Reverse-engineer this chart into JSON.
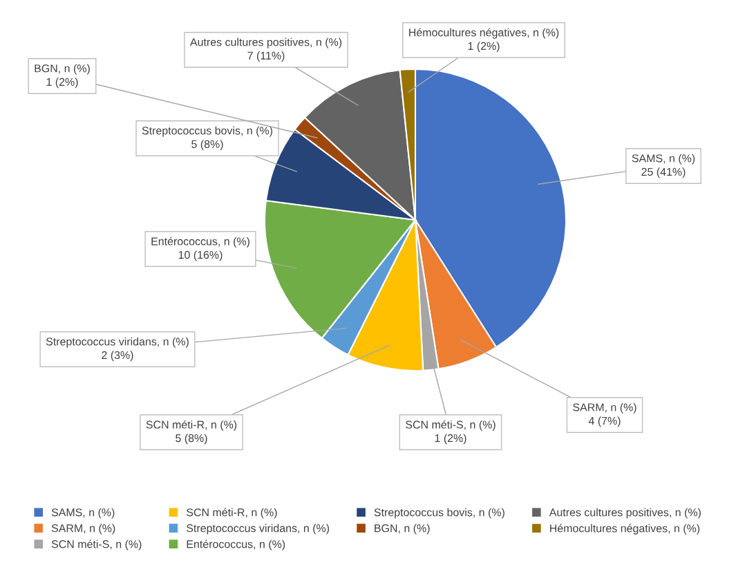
{
  "chart_data": {
    "type": "pie",
    "categories": [
      "SAMS, n (%)",
      "SARM, n (%)",
      "SCN méti-S, n (%)",
      "SCN méti-R, n (%)",
      "Streptococcus viridans, n (%)",
      "Entérococcus, n (%)",
      "Streptococcus bovis, n (%)",
      "BGN, n (%)",
      "Autres cultures positives, n (%)",
      "Hémocultures négatives, n (%)"
    ],
    "values": [
      25,
      4,
      1,
      5,
      2,
      10,
      5,
      1,
      7,
      1
    ],
    "value_labels": [
      "25 (41%)",
      "4 (7%)",
      "1 (2%)",
      "5 (8%)",
      "2 (3%)",
      "10 (16%)",
      "5 (8%)",
      "1 (2%)",
      "7 (11%)",
      "1 (2%)"
    ],
    "colors": [
      "#4472c4",
      "#ed7d31",
      "#a5a5a5",
      "#ffc000",
      "#5b9bd5",
      "#70ad47",
      "#264478",
      "#9e480e",
      "#636363",
      "#997300"
    ],
    "legend": "bottom"
  }
}
